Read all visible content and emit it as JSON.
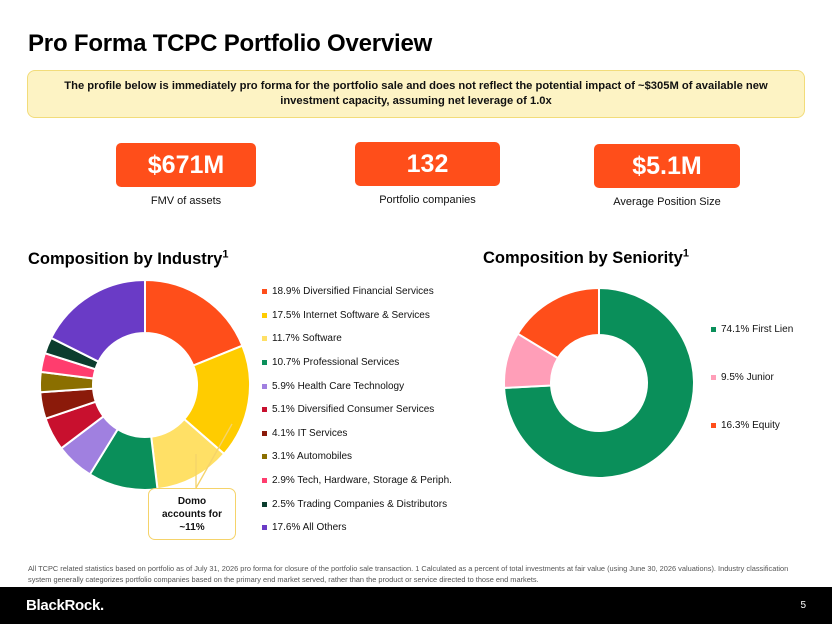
{
  "title": "Pro Forma TCPC Portfolio Overview",
  "notice": "The profile below is immediately pro forma for the portfolio sale and does not reflect the potential impact of ~$305M of available new investment capacity, assuming net leverage of 1.0x",
  "kpis": [
    {
      "value": "$671M",
      "label": "FMV of assets"
    },
    {
      "value": "132",
      "label": "Portfolio companies"
    },
    {
      "value": "$5.1M",
      "label": "Average Position Size"
    }
  ],
  "industry": {
    "title": "Composition by Industry",
    "footnote_mark": "1",
    "callout": "Domo accounts for ~11%",
    "items": [
      {
        "label": "18.9% Diversified Financial Services",
        "pct": 18.9,
        "color": "#ff4e1a"
      },
      {
        "label": "17.5% Internet Software & Services",
        "pct": 17.5,
        "color": "#ffcc00"
      },
      {
        "label": "11.7% Software",
        "pct": 11.7,
        "color": "#ffe066"
      },
      {
        "label": "10.7% Professional Services",
        "pct": 10.7,
        "color": "#0a8f5a"
      },
      {
        "label": "5.9% Health Care Technology",
        "pct": 5.9,
        "color": "#a080e0"
      },
      {
        "label": "5.1% Diversified Consumer Services",
        "pct": 5.1,
        "color": "#c8102e"
      },
      {
        "label": "4.1% IT Services",
        "pct": 4.1,
        "color": "#8b1a0a"
      },
      {
        "label": "3.1% Automobiles",
        "pct": 3.1,
        "color": "#8b6f00"
      },
      {
        "label": "2.9% Tech, Hardware, Storage & Periph.",
        "pct": 2.9,
        "color": "#ff3d6e"
      },
      {
        "label": "2.5% Trading Companies & Distributors",
        "pct": 2.5,
        "color": "#0b3d2e"
      },
      {
        "label": "17.6% All Others",
        "pct": 17.6,
        "color": "#6a3bc6"
      }
    ]
  },
  "seniority": {
    "title": "Composition by Seniority",
    "footnote_mark": "1",
    "items": [
      {
        "label": "74.1% First Lien",
        "pct": 74.1,
        "color": "#0a8f5a"
      },
      {
        "label": "9.5% Junior",
        "pct": 9.5,
        "color": "#ff9eb8"
      },
      {
        "label": "16.3% Equity",
        "pct": 16.3,
        "color": "#ff4e1a"
      }
    ]
  },
  "chart_data": [
    {
      "type": "pie",
      "title": "Composition by Industry",
      "categories": [
        "Diversified Financial Services",
        "Internet Software & Services",
        "Software",
        "Professional Services",
        "Health Care Technology",
        "Diversified Consumer Services",
        "IT Services",
        "Automobiles",
        "Tech, Hardware, Storage & Periph.",
        "Trading Companies & Distributors",
        "All Others"
      ],
      "values": [
        18.9,
        17.5,
        11.7,
        10.7,
        5.9,
        5.1,
        4.1,
        3.1,
        2.9,
        2.5,
        17.6
      ],
      "legend": "right"
    },
    {
      "type": "pie",
      "title": "Composition by Seniority",
      "categories": [
        "First Lien",
        "Junior",
        "Equity"
      ],
      "values": [
        74.1,
        9.5,
        16.3
      ],
      "legend": "right"
    }
  ],
  "footnote": "All TCPC related statistics based on portfolio as of July 31, 2026 pro forma for closure of the portfolio sale transaction. 1 Calculated as a percent of total investments at fair value (using June 30, 2026 valuations). Industry classification system generally categorizes portfolio companies based on the primary end market served, rather than the product or service directed to those end markets.",
  "footer": {
    "brand": "BlackRock.",
    "page": "5"
  }
}
